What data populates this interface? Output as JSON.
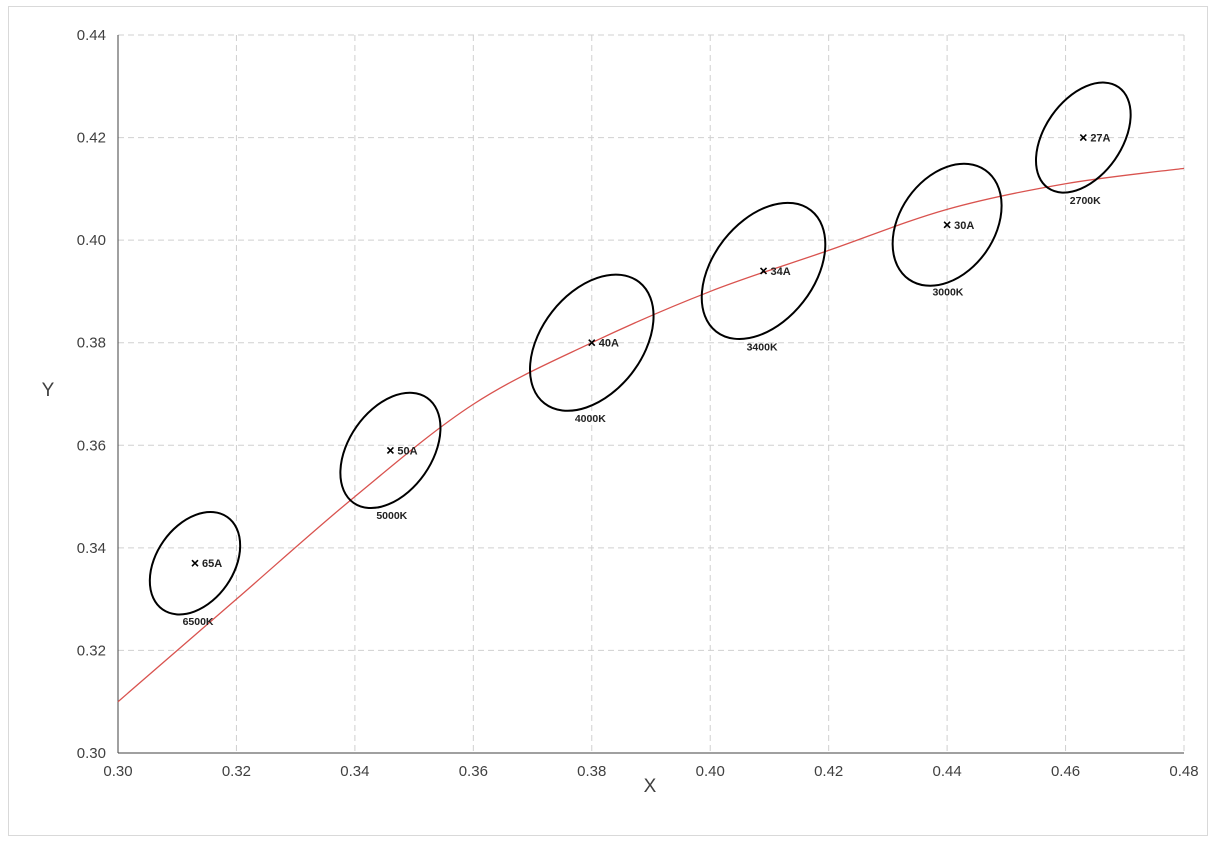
{
  "chart_data": {
    "type": "scatter",
    "xlabel": "X",
    "ylabel": "Y",
    "xlim": [
      0.3,
      0.48
    ],
    "ylim": [
      0.3,
      0.44
    ],
    "x_ticks": [
      "0.30",
      "0.32",
      "0.34",
      "0.36",
      "0.38",
      "0.40",
      "0.42",
      "0.44",
      "0.46",
      "0.48"
    ],
    "y_ticks": [
      "0.30",
      "0.32",
      "0.34",
      "0.36",
      "0.38",
      "0.40",
      "0.42",
      "0.44"
    ],
    "grid": true,
    "curve": {
      "color": "#d9534f",
      "x": [
        0.3,
        0.32,
        0.34,
        0.36,
        0.38,
        0.4,
        0.42,
        0.44,
        0.46,
        0.48
      ],
      "y": [
        0.31,
        0.33,
        0.35,
        0.368,
        0.38,
        0.39,
        0.398,
        0.406,
        0.411,
        0.414
      ]
    },
    "points": [
      {
        "label": "65A",
        "cct": "6500K",
        "x": 0.313,
        "y": 0.337,
        "ellipse": {
          "a": 0.0065,
          "b": 0.011,
          "tilt_deg": 35
        }
      },
      {
        "label": "50A",
        "cct": "5000K",
        "x": 0.346,
        "y": 0.359,
        "ellipse": {
          "a": 0.007,
          "b": 0.0125,
          "tilt_deg": 35
        }
      },
      {
        "label": "40A",
        "cct": "4000K",
        "x": 0.38,
        "y": 0.38,
        "ellipse": {
          "a": 0.0085,
          "b": 0.015,
          "tilt_deg": 38
        }
      },
      {
        "label": "34A",
        "cct": "3400K",
        "x": 0.409,
        "y": 0.394,
        "ellipse": {
          "a": 0.0085,
          "b": 0.015,
          "tilt_deg": 38
        }
      },
      {
        "label": "30A",
        "cct": "3000K",
        "x": 0.44,
        "y": 0.403,
        "ellipse": {
          "a": 0.008,
          "b": 0.013,
          "tilt_deg": 35
        }
      },
      {
        "label": "27A",
        "cct": "2700K",
        "x": 0.463,
        "y": 0.42,
        "ellipse": {
          "a": 0.0065,
          "b": 0.012,
          "tilt_deg": 35
        }
      }
    ]
  }
}
